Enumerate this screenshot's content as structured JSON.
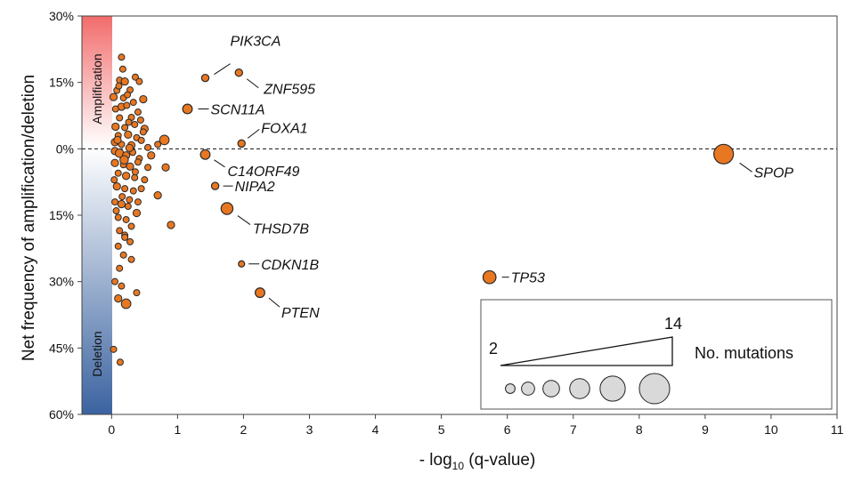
{
  "chart_data": {
    "type": "scatter",
    "xlabel": "- log10 (q-value)",
    "xlabel_parts": {
      "prefix": "- log",
      "sub": "10",
      "suffix": " (q-value)"
    },
    "ylabel": "Net frequency of amplification/deletion",
    "xlim": [
      -0.45,
      11
    ],
    "ylim": [
      -60,
      30
    ],
    "x_ticks": [
      0,
      1,
      2,
      3,
      4,
      5,
      6,
      7,
      8,
      9,
      10,
      11
    ],
    "x_tick_labels": [
      "0",
      "1",
      "2",
      "3",
      "4",
      "5",
      "6",
      "7",
      "8",
      "9",
      "10",
      "11"
    ],
    "y_ticks": [
      30,
      15,
      0,
      -15,
      -30,
      -45,
      -60
    ],
    "y_tick_labels": [
      "30%",
      "15%",
      "0%",
      "15%",
      "30%",
      "45%",
      "60%"
    ],
    "band_labels": {
      "top": "Amplification",
      "bottom": "Deletion"
    },
    "colors": {
      "point_fill": "#e87722",
      "point_stroke": "#2a2a2a",
      "amp": "#f26b6b",
      "del": "#3b63a0",
      "legend_fill": "#d9d9d9"
    },
    "reference_line": 0,
    "labeled_points": [
      {
        "gene": "PIK3CA",
        "x": 1.42,
        "y": 16,
        "mutations": 3
      },
      {
        "gene": "ZNF595",
        "x": 1.93,
        "y": 17.2,
        "mutations": 3
      },
      {
        "gene": "SCN11A",
        "x": 1.15,
        "y": 9,
        "mutations": 5
      },
      {
        "gene": "FOXA1",
        "x": 1.97,
        "y": 1.2,
        "mutations": 3
      },
      {
        "gene": "C14ORF49",
        "x": 1.42,
        "y": -1.3,
        "mutations": 5
      },
      {
        "gene": "NIPA2",
        "x": 1.57,
        "y": -8.4,
        "mutations": 3
      },
      {
        "gene": "THSD7B",
        "x": 1.75,
        "y": -13.5,
        "mutations": 7
      },
      {
        "gene": "CDKN1B",
        "x": 1.97,
        "y": -26,
        "mutations": 2
      },
      {
        "gene": "PTEN",
        "x": 2.25,
        "y": -32.5,
        "mutations": 5
      },
      {
        "gene": "TP53",
        "x": 5.73,
        "y": -29,
        "mutations": 8
      },
      {
        "gene": "SPOP",
        "x": 9.28,
        "y": -1.2,
        "mutations": 14
      }
    ],
    "other_points": [
      [
        0.15,
        20.7,
        2
      ],
      [
        0.12,
        15.5,
        2
      ],
      [
        0.2,
        15.2,
        3
      ],
      [
        0.08,
        13.2,
        2
      ],
      [
        0.03,
        11.7,
        3
      ],
      [
        0.36,
        16.2,
        2
      ],
      [
        0.28,
        13.3,
        2
      ],
      [
        0.18,
        11.5,
        2
      ],
      [
        0.42,
        15.2,
        2
      ],
      [
        0.15,
        9.5,
        3
      ],
      [
        0.23,
        9.8,
        2
      ],
      [
        0.4,
        8.3,
        2
      ],
      [
        0.12,
        7.0,
        2
      ],
      [
        0.3,
        7.1,
        2
      ],
      [
        0.48,
        11.2,
        3
      ],
      [
        0.06,
        5.0,
        3
      ],
      [
        0.2,
        4.8,
        2
      ],
      [
        0.35,
        5.5,
        2
      ],
      [
        0.5,
        4.5,
        3
      ],
      [
        0.1,
        3.0,
        2
      ],
      [
        0.25,
        3.2,
        3
      ],
      [
        0.38,
        2.5,
        2
      ],
      [
        0.05,
        1.5,
        3
      ],
      [
        0.15,
        1.0,
        2
      ],
      [
        0.3,
        0.8,
        3
      ],
      [
        0.45,
        1.9,
        2
      ],
      [
        0.7,
        1.0,
        2
      ],
      [
        0.8,
        2.0,
        5
      ],
      [
        0.55,
        0.3,
        2
      ],
      [
        0.05,
        -0.5,
        3
      ],
      [
        0.12,
        -1.0,
        4
      ],
      [
        0.22,
        -1.5,
        3
      ],
      [
        0.32,
        -0.8,
        2
      ],
      [
        0.42,
        -2.2,
        2
      ],
      [
        0.6,
        -1.5,
        3
      ],
      [
        0.05,
        -3.2,
        3
      ],
      [
        0.18,
        -3.6,
        2
      ],
      [
        0.28,
        -4.0,
        3
      ],
      [
        0.4,
        -3.0,
        2
      ],
      [
        0.55,
        -4.2,
        2
      ],
      [
        0.82,
        -4.2,
        3
      ],
      [
        0.1,
        -5.5,
        2
      ],
      [
        0.22,
        -6.1,
        3
      ],
      [
        0.35,
        -6.5,
        2
      ],
      [
        0.5,
        -7.0,
        2
      ],
      [
        0.08,
        -8.5,
        3
      ],
      [
        0.2,
        -9.0,
        2
      ],
      [
        0.33,
        -9.5,
        2
      ],
      [
        0.45,
        -9.0,
        2
      ],
      [
        0.7,
        -10.5,
        3
      ],
      [
        0.05,
        -12.0,
        2
      ],
      [
        0.15,
        -12.5,
        3
      ],
      [
        0.25,
        -13.0,
        2
      ],
      [
        0.38,
        -14.5,
        3
      ],
      [
        0.1,
        -15.5,
        2
      ],
      [
        0.22,
        -16.0,
        2
      ],
      [
        0.3,
        -17.5,
        2
      ],
      [
        0.9,
        -17.2,
        3
      ],
      [
        0.12,
        -18.5,
        2
      ],
      [
        0.2,
        -19.5,
        2
      ],
      [
        0.28,
        -21.0,
        2
      ],
      [
        0.1,
        -22.0,
        2
      ],
      [
        0.18,
        -24.0,
        2
      ],
      [
        0.3,
        -25.0,
        2
      ],
      [
        0.12,
        -27.0,
        2
      ],
      [
        0.05,
        -30.0,
        2
      ],
      [
        0.15,
        -31.0,
        2
      ],
      [
        0.38,
        -32.5,
        2
      ],
      [
        0.1,
        -33.8,
        3
      ],
      [
        0.22,
        -35.0,
        5
      ],
      [
        0.03,
        -45.3,
        2
      ],
      [
        0.13,
        -48.2,
        2
      ],
      [
        0.17,
        18.0,
        2
      ],
      [
        0.06,
        9.0,
        2
      ],
      [
        0.26,
        6.0,
        2
      ],
      [
        0.44,
        6.5,
        2
      ],
      [
        0.09,
        2.0,
        3
      ],
      [
        0.19,
        -2.5,
        4
      ],
      [
        0.27,
        0.2,
        3
      ],
      [
        0.36,
        -5.2,
        2
      ],
      [
        0.48,
        3.8,
        2
      ],
      [
        0.04,
        -7.0,
        2
      ],
      [
        0.16,
        -10.8,
        2
      ],
      [
        0.27,
        -11.5,
        2
      ],
      [
        0.07,
        -14.0,
        2
      ],
      [
        0.2,
        -20.0,
        2
      ],
      [
        0.24,
        12.2,
        2
      ],
      [
        0.33,
        10.5,
        2
      ],
      [
        0.11,
        14.2,
        2
      ],
      [
        0.4,
        -12.0,
        2
      ]
    ],
    "legend": {
      "title": "No. mutations",
      "min_label": "2",
      "max_label": "14",
      "sizes": [
        2,
        4,
        6,
        8,
        11,
        14
      ]
    }
  }
}
